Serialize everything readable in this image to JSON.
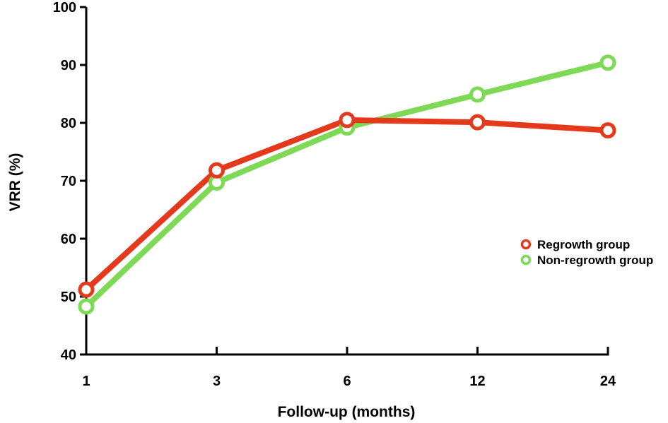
{
  "chart_data": {
    "type": "line",
    "categories": [
      "1",
      "3",
      "6",
      "12",
      "24"
    ],
    "xlabel": "Follow-up (months)",
    "ylabel": "VRR (%)",
    "ylim": [
      40,
      100
    ],
    "yticks": [
      40,
      50,
      60,
      70,
      80,
      90,
      100
    ],
    "grid": false,
    "legend_position": "right",
    "series": [
      {
        "name": "Regrowth group",
        "color": "#e5391c",
        "values": [
          51.2,
          71.8,
          80.5,
          80.1,
          78.7
        ]
      },
      {
        "name": "Non-regrowth group",
        "color": "#7ed957",
        "values": [
          48.3,
          69.7,
          79.2,
          84.9,
          90.4
        ]
      }
    ]
  }
}
